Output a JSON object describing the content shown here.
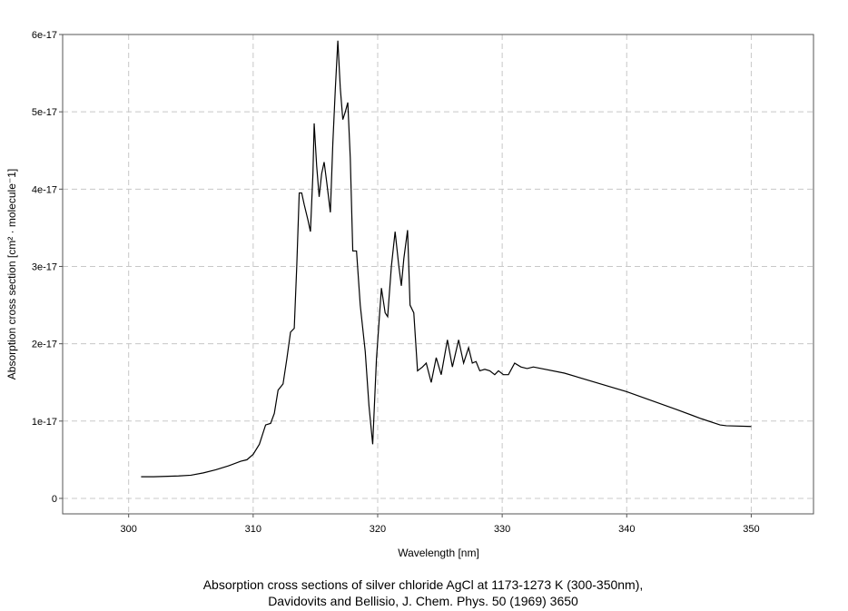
{
  "chart_data": {
    "type": "line",
    "title": "Absorption cross sections of silver chloride AgCl at 1173-1273 K (300-350nm),",
    "subtitle": "Davidovits and Bellisio, J. Chem. Phys. 50 (1969) 3650",
    "x_label": "Wavelength [nm]",
    "y_label": "Absorption cross section [cm² · molecule⁻1]",
    "xlim": [
      294.7,
      355
    ],
    "xticks": [
      300,
      310,
      320,
      330,
      340,
      350
    ],
    "ylim": [
      -2e-18,
      6e-17
    ],
    "yticks": [
      0,
      1e-17,
      2e-17,
      3e-17,
      4e-17,
      5e-17,
      6e-17
    ],
    "grid": true,
    "series": [
      {
        "color": "#000000",
        "x": [
          301,
          302,
          304,
          305,
          306,
          307,
          308,
          309,
          309.5,
          310,
          310.5,
          310.8,
          311,
          311.4,
          311.7,
          312,
          312.4,
          312.7,
          313,
          313.3,
          313.5,
          313.7,
          313.9,
          314.1,
          314.4,
          314.6,
          314.8,
          314.9,
          315.1,
          315.3,
          315.5,
          315.7,
          315.9,
          316.2,
          316.4,
          316.6,
          316.8,
          317.0,
          317.2,
          317.4,
          317.6,
          317.8,
          318.0,
          318.3,
          318.6,
          319.0,
          319.3,
          319.6,
          319.9,
          320.3,
          320.6,
          320.8,
          321.1,
          321.4,
          321.7,
          321.9,
          322.1,
          322.4,
          322.6,
          322.9,
          323.2,
          323.6,
          323.9,
          324.3,
          324.7,
          325.1,
          325.6,
          326.0,
          326.5,
          326.9,
          327.3,
          327.6,
          327.9,
          328.2,
          328.6,
          329.0,
          329.4,
          329.7,
          330.1,
          330.5,
          331.0,
          331.5,
          332.0,
          332.5,
          335,
          340,
          344,
          346,
          347.5,
          348,
          350
        ],
        "values": [
          2.8e-18,
          2.8e-18,
          2.9e-18,
          3e-18,
          3.3e-18,
          3.7e-18,
          4.2e-18,
          4.8e-18,
          5e-18,
          5.7e-18,
          7e-18,
          8.5e-18,
          9.5e-18,
          9.7e-18,
          1.1e-17,
          1.4e-17,
          1.48e-17,
          1.8e-17,
          2.15e-17,
          2.2e-17,
          3e-17,
          3.95e-17,
          3.95e-17,
          3.8e-17,
          3.6e-17,
          3.45e-17,
          4.2e-17,
          4.85e-17,
          4.3e-17,
          3.9e-17,
          4.2e-17,
          4.35e-17,
          4.1e-17,
          3.7e-17,
          4.6e-17,
          5.3e-17,
          5.92e-17,
          5.3e-17,
          4.9e-17,
          5e-17,
          5.12e-17,
          4.4e-17,
          3.2e-17,
          3.2e-17,
          2.5e-17,
          1.9e-17,
          1.2e-17,
          7e-18,
          1.8e-17,
          2.72e-17,
          2.4e-17,
          2.35e-17,
          3e-17,
          3.45e-17,
          3e-17,
          2.75e-17,
          3.1e-17,
          3.47e-17,
          2.5e-17,
          2.4e-17,
          1.65e-17,
          1.7e-17,
          1.75e-17,
          1.5e-17,
          1.82e-17,
          1.6e-17,
          2.05e-17,
          1.7e-17,
          2.05e-17,
          1.75e-17,
          1.95e-17,
          1.75e-17,
          1.77e-17,
          1.65e-17,
          1.67e-17,
          1.65e-17,
          1.6e-17,
          1.65e-17,
          1.6e-17,
          1.6e-17,
          1.75e-17,
          1.7e-17,
          1.68e-17,
          1.7e-17,
          1.62e-17,
          1.38e-17,
          1.15e-17,
          1.03e-17,
          9.5e-18,
          9.4e-18,
          9.3e-18
        ]
      }
    ]
  }
}
